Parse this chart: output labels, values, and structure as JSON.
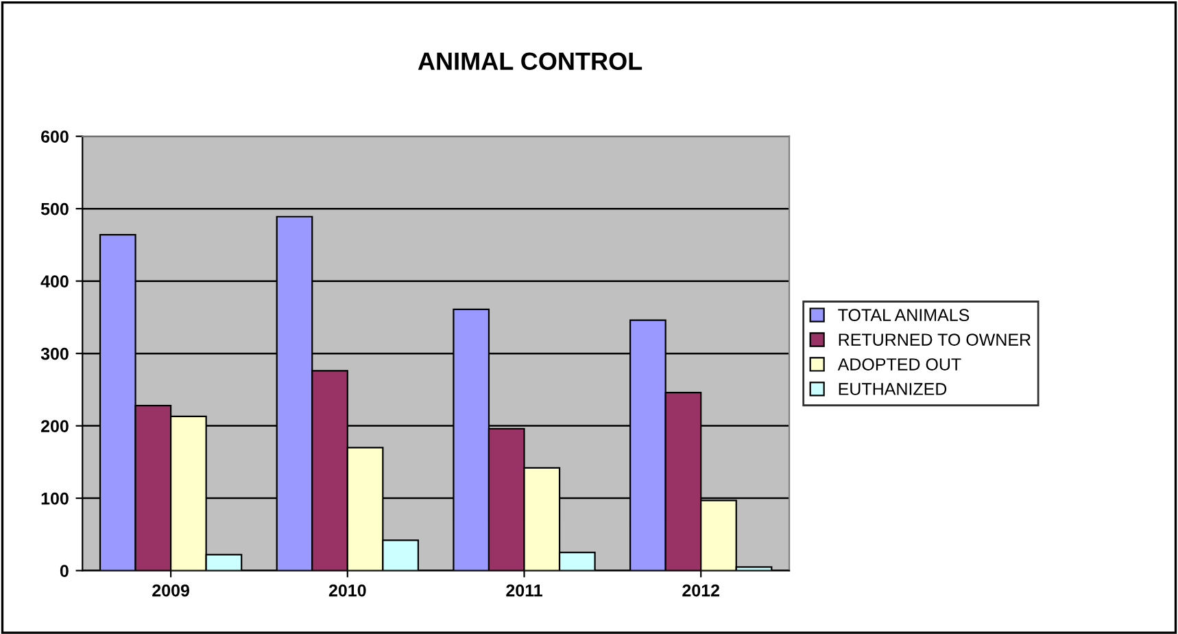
{
  "chart_data": {
    "type": "bar",
    "title": "ANIMAL CONTROL",
    "categories": [
      "2009",
      "2010",
      "2011",
      "2012"
    ],
    "series": [
      {
        "name": "TOTAL ANIMALS",
        "color": "#9999ff",
        "values": [
          464,
          489,
          361,
          346
        ]
      },
      {
        "name": "RETURNED TO OWNER",
        "color": "#993366",
        "values": [
          228,
          276,
          196,
          246
        ]
      },
      {
        "name": "ADOPTED OUT",
        "color": "#ffffcc",
        "values": [
          213,
          170,
          142,
          97
        ]
      },
      {
        "name": "EUTHANIZED",
        "color": "#ccffff",
        "values": [
          22,
          42,
          25,
          5
        ]
      }
    ],
    "ylim": [
      0,
      600
    ],
    "yticks": [
      0,
      100,
      200,
      300,
      400,
      500,
      600
    ],
    "grid": "y",
    "legend": "right"
  }
}
